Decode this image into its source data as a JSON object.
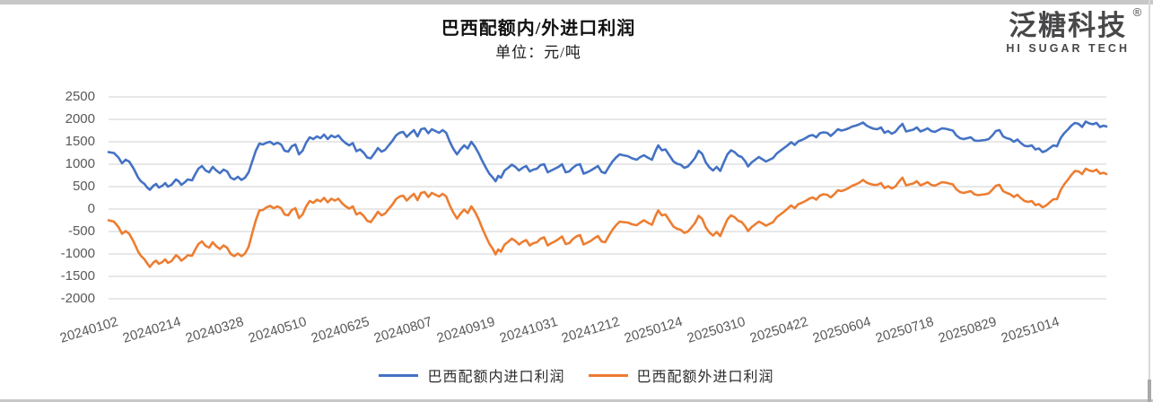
{
  "header": {
    "title": "巴西配额内/外进口利润",
    "subtitle": "单位：元/吨"
  },
  "logo": {
    "cn": "泛糖科技",
    "reg": "®",
    "en": "HI SUGAR TECH"
  },
  "chart_data": {
    "type": "line",
    "title": "巴西配额内/外进口利润",
    "unit_label": "单位：元/吨",
    "xlabel": "",
    "ylabel": "",
    "ylim": [
      -2000,
      2500
    ],
    "y_ticks": [
      2500,
      2000,
      1500,
      1000,
      500,
      0,
      -500,
      -1000,
      -1500,
      -2000
    ],
    "x_tick_labels": [
      "20240102",
      "20240214",
      "20240328",
      "20240510",
      "20240625",
      "20240807",
      "20240919",
      "20241031",
      "20241212",
      "20250124",
      "20250310",
      "20250422",
      "20250604",
      "20250718",
      "20250829",
      "20251014"
    ],
    "grid": true,
    "grid_color": "#d9d9d9",
    "axis_text_color": "#595959",
    "legend_position": "bottom",
    "series": [
      {
        "name": "巴西配额内进口利润",
        "color": "#4472C4"
      },
      {
        "name": "巴西配额外进口利润",
        "color": "#ED7D31"
      }
    ],
    "points_format": [
      "t (0-1 along time axis)",
      "in-quota profit",
      "out-of-quota profit"
    ],
    "points": [
      [
        0,
        1270,
        -250
      ],
      [
        0.0054,
        1250,
        -280
      ],
      [
        0.0099,
        1150,
        -400
      ],
      [
        0.0135,
        1020,
        -550
      ],
      [
        0.0171,
        1100,
        -490
      ],
      [
        0.0207,
        1060,
        -550
      ],
      [
        0.0252,
        900,
        -730
      ],
      [
        0.0297,
        700,
        -950
      ],
      [
        0.0324,
        620,
        -1040
      ],
      [
        0.036,
        560,
        -1120
      ],
      [
        0.0387,
        480,
        -1210
      ],
      [
        0.0414,
        430,
        -1290
      ],
      [
        0.045,
        520,
        -1190
      ],
      [
        0.0477,
        560,
        -1150
      ],
      [
        0.0504,
        480,
        -1220
      ],
      [
        0.054,
        520,
        -1180
      ],
      [
        0.0567,
        580,
        -1120
      ],
      [
        0.0594,
        500,
        -1200
      ],
      [
        0.063,
        540,
        -1160
      ],
      [
        0.0675,
        660,
        -1030
      ],
      [
        0.0702,
        620,
        -1070
      ],
      [
        0.0729,
        540,
        -1150
      ],
      [
        0.0765,
        600,
        -1090
      ],
      [
        0.0792,
        660,
        -1030
      ],
      [
        0.0837,
        640,
        -1040
      ],
      [
        0.0864,
        760,
        -920
      ],
      [
        0.09,
        900,
        -780
      ],
      [
        0.0936,
        960,
        -720
      ],
      [
        0.0972,
        860,
        -820
      ],
      [
        0.1008,
        820,
        -860
      ],
      [
        0.1044,
        940,
        -740
      ],
      [
        0.108,
        860,
        -830
      ],
      [
        0.1116,
        800,
        -890
      ],
      [
        0.1152,
        880,
        -810
      ],
      [
        0.1188,
        840,
        -860
      ],
      [
        0.1224,
        700,
        -1000
      ],
      [
        0.126,
        660,
        -1050
      ],
      [
        0.1296,
        720,
        -990
      ],
      [
        0.1332,
        650,
        -1050
      ],
      [
        0.1368,
        700,
        -990
      ],
      [
        0.1404,
        820,
        -840
      ],
      [
        0.144,
        1060,
        -540
      ],
      [
        0.1476,
        1300,
        -250
      ],
      [
        0.1512,
        1460,
        -30
      ],
      [
        0.1548,
        1440,
        -20
      ],
      [
        0.1584,
        1480,
        40
      ],
      [
        0.162,
        1500,
        70
      ],
      [
        0.1656,
        1440,
        20
      ],
      [
        0.1692,
        1480,
        60
      ],
      [
        0.1728,
        1440,
        20
      ],
      [
        0.1764,
        1300,
        -120
      ],
      [
        0.18,
        1280,
        -140
      ],
      [
        0.1836,
        1400,
        -20
      ],
      [
        0.1872,
        1440,
        20
      ],
      [
        0.1908,
        1220,
        -200
      ],
      [
        0.1944,
        1300,
        -120
      ],
      [
        0.198,
        1480,
        60
      ],
      [
        0.2016,
        1600,
        180
      ],
      [
        0.2052,
        1560,
        140
      ],
      [
        0.2088,
        1620,
        210
      ],
      [
        0.2124,
        1580,
        170
      ],
      [
        0.216,
        1660,
        250
      ],
      [
        0.2196,
        1560,
        150
      ],
      [
        0.2232,
        1640,
        230
      ],
      [
        0.2268,
        1600,
        190
      ],
      [
        0.2304,
        1640,
        230
      ],
      [
        0.234,
        1540,
        130
      ],
      [
        0.2376,
        1470,
        60
      ],
      [
        0.2412,
        1420,
        10
      ],
      [
        0.2448,
        1470,
        60
      ],
      [
        0.2484,
        1290,
        -120
      ],
      [
        0.252,
        1330,
        -80
      ],
      [
        0.2556,
        1260,
        -150
      ],
      [
        0.2592,
        1150,
        -260
      ],
      [
        0.2628,
        1130,
        -290
      ],
      [
        0.2664,
        1240,
        -180
      ],
      [
        0.27,
        1360,
        -60
      ],
      [
        0.2736,
        1280,
        -140
      ],
      [
        0.2772,
        1320,
        -100
      ],
      [
        0.2808,
        1420,
        0
      ],
      [
        0.2844,
        1520,
        100
      ],
      [
        0.288,
        1640,
        220
      ],
      [
        0.2916,
        1700,
        280
      ],
      [
        0.2952,
        1720,
        300
      ],
      [
        0.2988,
        1610,
        190
      ],
      [
        0.3024,
        1690,
        270
      ],
      [
        0.306,
        1760,
        340
      ],
      [
        0.3096,
        1620,
        200
      ],
      [
        0.3132,
        1780,
        360
      ],
      [
        0.3168,
        1800,
        380
      ],
      [
        0.3204,
        1690,
        270
      ],
      [
        0.324,
        1780,
        360
      ],
      [
        0.3276,
        1740,
        320
      ],
      [
        0.3312,
        1700,
        280
      ],
      [
        0.3348,
        1760,
        340
      ],
      [
        0.3384,
        1700,
        280
      ],
      [
        0.342,
        1500,
        80
      ],
      [
        0.3456,
        1340,
        -80
      ],
      [
        0.3492,
        1220,
        -210
      ],
      [
        0.3528,
        1330,
        -100
      ],
      [
        0.3564,
        1420,
        -10
      ],
      [
        0.36,
        1350,
        -90
      ],
      [
        0.3636,
        1500,
        60
      ],
      [
        0.3672,
        1390,
        -60
      ],
      [
        0.3708,
        1250,
        -220
      ],
      [
        0.3744,
        1080,
        -420
      ],
      [
        0.378,
        930,
        -600
      ],
      [
        0.3816,
        790,
        -770
      ],
      [
        0.3852,
        700,
        -890
      ],
      [
        0.3879,
        620,
        -1010
      ],
      [
        0.3906,
        740,
        -900
      ],
      [
        0.3933,
        700,
        -950
      ],
      [
        0.3969,
        860,
        -790
      ],
      [
        0.4005,
        920,
        -730
      ],
      [
        0.4041,
        990,
        -660
      ],
      [
        0.4077,
        940,
        -710
      ],
      [
        0.4113,
        860,
        -790
      ],
      [
        0.4149,
        920,
        -730
      ],
      [
        0.4185,
        960,
        -690
      ],
      [
        0.4221,
        840,
        -810
      ],
      [
        0.4257,
        880,
        -760
      ],
      [
        0.4293,
        900,
        -740
      ],
      [
        0.4329,
        980,
        -660
      ],
      [
        0.4365,
        1000,
        -630
      ],
      [
        0.4401,
        820,
        -810
      ],
      [
        0.4437,
        860,
        -760
      ],
      [
        0.4473,
        900,
        -720
      ],
      [
        0.4509,
        940,
        -670
      ],
      [
        0.4545,
        1000,
        -610
      ],
      [
        0.4581,
        820,
        -780
      ],
      [
        0.4617,
        840,
        -760
      ],
      [
        0.4653,
        920,
        -670
      ],
      [
        0.4689,
        980,
        -610
      ],
      [
        0.4725,
        1000,
        -580
      ],
      [
        0.4761,
        790,
        -790
      ],
      [
        0.4797,
        820,
        -750
      ],
      [
        0.4833,
        860,
        -710
      ],
      [
        0.4869,
        910,
        -650
      ],
      [
        0.4905,
        960,
        -600
      ],
      [
        0.4941,
        830,
        -720
      ],
      [
        0.4977,
        800,
        -740
      ],
      [
        0.5014,
        940,
        -590
      ],
      [
        0.505,
        1060,
        -460
      ],
      [
        0.5086,
        1150,
        -360
      ],
      [
        0.5122,
        1220,
        -280
      ],
      [
        0.5158,
        1200,
        -290
      ],
      [
        0.5203,
        1180,
        -300
      ],
      [
        0.5248,
        1130,
        -340
      ],
      [
        0.5293,
        1100,
        -360
      ],
      [
        0.5329,
        1160,
        -300
      ],
      [
        0.5365,
        1200,
        -250
      ],
      [
        0.541,
        1140,
        -310
      ],
      [
        0.5446,
        1100,
        -350
      ],
      [
        0.5482,
        1300,
        -150
      ],
      [
        0.5509,
        1420,
        -30
      ],
      [
        0.5545,
        1310,
        -140
      ],
      [
        0.5581,
        1330,
        -120
      ],
      [
        0.5626,
        1180,
        -270
      ],
      [
        0.5662,
        1060,
        -390
      ],
      [
        0.5698,
        1010,
        -440
      ],
      [
        0.5734,
        990,
        -460
      ],
      [
        0.577,
        920,
        -530
      ],
      [
        0.5806,
        950,
        -500
      ],
      [
        0.5842,
        1040,
        -410
      ],
      [
        0.5878,
        1140,
        -310
      ],
      [
        0.5914,
        1300,
        -150
      ],
      [
        0.595,
        1230,
        -220
      ],
      [
        0.5986,
        1040,
        -410
      ],
      [
        0.6022,
        930,
        -520
      ],
      [
        0.6058,
        860,
        -590
      ],
      [
        0.6094,
        940,
        -510
      ],
      [
        0.613,
        850,
        -600
      ],
      [
        0.6166,
        1040,
        -410
      ],
      [
        0.6202,
        1220,
        -230
      ],
      [
        0.6238,
        1310,
        -140
      ],
      [
        0.6274,
        1270,
        -180
      ],
      [
        0.631,
        1190,
        -260
      ],
      [
        0.6346,
        1160,
        -290
      ],
      [
        0.6382,
        1060,
        -390
      ],
      [
        0.6409,
        950,
        -490
      ],
      [
        0.6445,
        1040,
        -400
      ],
      [
        0.6481,
        1100,
        -340
      ],
      [
        0.6517,
        1160,
        -280
      ],
      [
        0.6553,
        1110,
        -320
      ],
      [
        0.6589,
        1060,
        -370
      ],
      [
        0.6625,
        1100,
        -330
      ],
      [
        0.6661,
        1140,
        -290
      ],
      [
        0.6697,
        1240,
        -180
      ],
      [
        0.6733,
        1300,
        -120
      ],
      [
        0.6769,
        1360,
        -60
      ],
      [
        0.6805,
        1420,
        10
      ],
      [
        0.6841,
        1490,
        80
      ],
      [
        0.6877,
        1430,
        20
      ],
      [
        0.6913,
        1510,
        110
      ],
      [
        0.6949,
        1540,
        140
      ],
      [
        0.6985,
        1580,
        180
      ],
      [
        0.7021,
        1630,
        230
      ],
      [
        0.7057,
        1650,
        260
      ],
      [
        0.7093,
        1600,
        210
      ],
      [
        0.7129,
        1690,
        300
      ],
      [
        0.7165,
        1710,
        330
      ],
      [
        0.7201,
        1700,
        320
      ],
      [
        0.7237,
        1630,
        260
      ],
      [
        0.7273,
        1700,
        330
      ],
      [
        0.7309,
        1780,
        420
      ],
      [
        0.7345,
        1750,
        400
      ],
      [
        0.7381,
        1770,
        430
      ],
      [
        0.7417,
        1800,
        470
      ],
      [
        0.7453,
        1840,
        520
      ],
      [
        0.7489,
        1860,
        550
      ],
      [
        0.7525,
        1890,
        590
      ],
      [
        0.7561,
        1930,
        650
      ],
      [
        0.7597,
        1860,
        590
      ],
      [
        0.7633,
        1820,
        560
      ],
      [
        0.7669,
        1790,
        540
      ],
      [
        0.7705,
        1780,
        540
      ],
      [
        0.7741,
        1820,
        580
      ],
      [
        0.7777,
        1700,
        470
      ],
      [
        0.7813,
        1740,
        510
      ],
      [
        0.7849,
        1680,
        460
      ],
      [
        0.7885,
        1720,
        500
      ],
      [
        0.7921,
        1820,
        610
      ],
      [
        0.7957,
        1900,
        700
      ],
      [
        0.7993,
        1730,
        530
      ],
      [
        0.8029,
        1750,
        550
      ],
      [
        0.8065,
        1770,
        570
      ],
      [
        0.8101,
        1820,
        620
      ],
      [
        0.8137,
        1730,
        530
      ],
      [
        0.8173,
        1760,
        560
      ],
      [
        0.8209,
        1800,
        600
      ],
      [
        0.8245,
        1740,
        540
      ],
      [
        0.8281,
        1720,
        520
      ],
      [
        0.8317,
        1760,
        560
      ],
      [
        0.8353,
        1800,
        600
      ],
      [
        0.8389,
        1790,
        590
      ],
      [
        0.8425,
        1770,
        570
      ],
      [
        0.8461,
        1750,
        550
      ],
      [
        0.8497,
        1640,
        440
      ],
      [
        0.8533,
        1580,
        380
      ],
      [
        0.8569,
        1560,
        360
      ],
      [
        0.8605,
        1580,
        380
      ],
      [
        0.8641,
        1600,
        400
      ],
      [
        0.8677,
        1530,
        330
      ],
      [
        0.8713,
        1520,
        310
      ],
      [
        0.8749,
        1530,
        320
      ],
      [
        0.8785,
        1540,
        330
      ],
      [
        0.8821,
        1560,
        350
      ],
      [
        0.8857,
        1640,
        430
      ],
      [
        0.8893,
        1740,
        520
      ],
      [
        0.8929,
        1760,
        540
      ],
      [
        0.8965,
        1620,
        400
      ],
      [
        0.9001,
        1580,
        360
      ],
      [
        0.9037,
        1560,
        330
      ],
      [
        0.9073,
        1500,
        270
      ],
      [
        0.9109,
        1550,
        320
      ],
      [
        0.9145,
        1470,
        240
      ],
      [
        0.9181,
        1410,
        180
      ],
      [
        0.9217,
        1400,
        160
      ],
      [
        0.9253,
        1420,
        180
      ],
      [
        0.9289,
        1330,
        90
      ],
      [
        0.9325,
        1350,
        110
      ],
      [
        0.9361,
        1270,
        40
      ],
      [
        0.9397,
        1300,
        80
      ],
      [
        0.9433,
        1360,
        150
      ],
      [
        0.9469,
        1420,
        220
      ],
      [
        0.9505,
        1400,
        220
      ],
      [
        0.9541,
        1580,
        420
      ],
      [
        0.9577,
        1690,
        550
      ],
      [
        0.9613,
        1770,
        650
      ],
      [
        0.9649,
        1860,
        760
      ],
      [
        0.9685,
        1920,
        850
      ],
      [
        0.9721,
        1900,
        840
      ],
      [
        0.9757,
        1830,
        780
      ],
      [
        0.9793,
        1950,
        900
      ],
      [
        0.9829,
        1910,
        860
      ],
      [
        0.9865,
        1890,
        840
      ],
      [
        0.9901,
        1920,
        880
      ],
      [
        0.9937,
        1830,
        790
      ],
      [
        0.9973,
        1860,
        810
      ],
      [
        1,
        1840,
        780
      ]
    ]
  }
}
